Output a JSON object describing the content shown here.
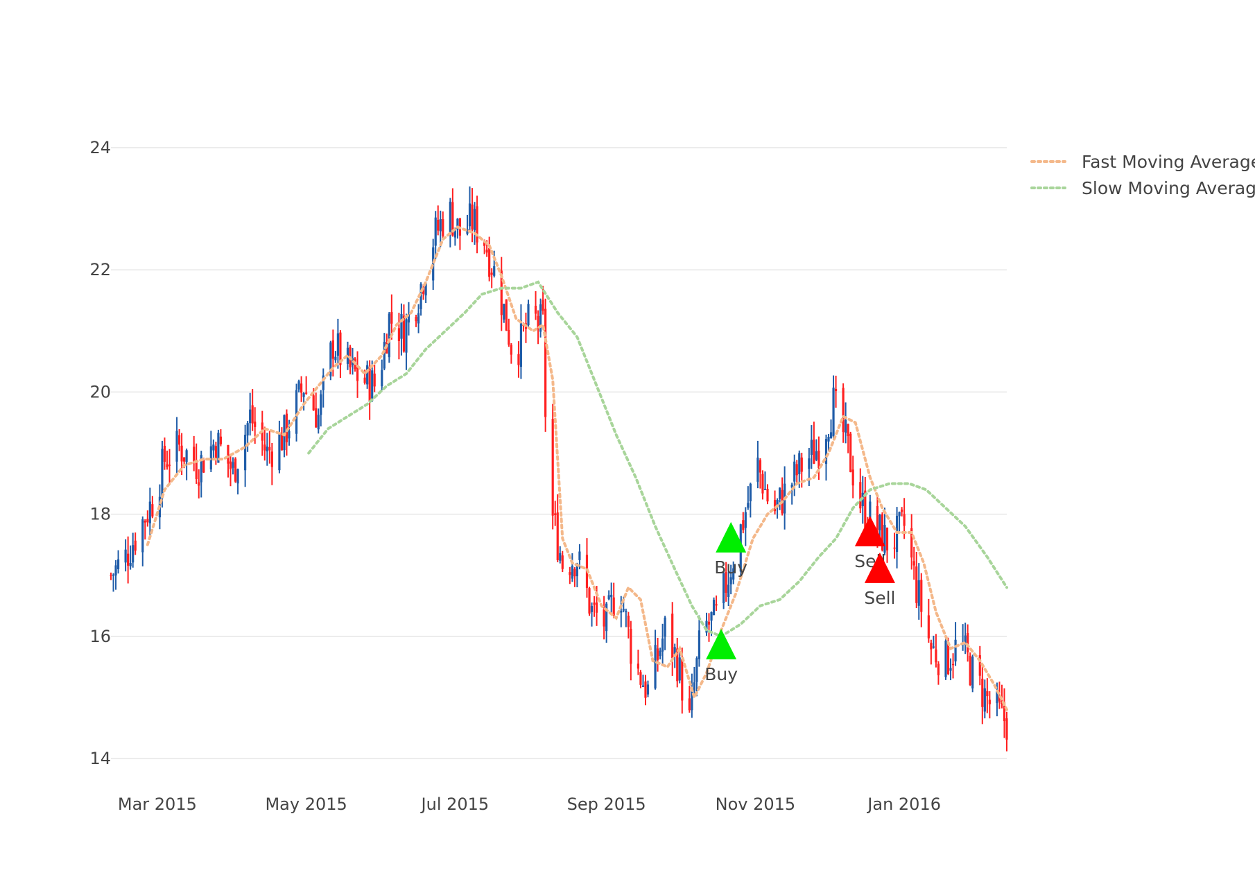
{
  "chart_data": {
    "type": "candlestick",
    "y_ticks": [
      14,
      16,
      18,
      20,
      22,
      24
    ],
    "ylim": [
      14,
      24
    ],
    "x_ticks": [
      {
        "date": "2015-03-01",
        "label": "Mar 2015"
      },
      {
        "date": "2015-05-01",
        "label": "May 2015"
      },
      {
        "date": "2015-07-01",
        "label": "Jul 2015"
      },
      {
        "date": "2015-09-01",
        "label": "Sep 2015"
      },
      {
        "date": "2015-11-01",
        "label": "Nov 2015"
      },
      {
        "date": "2016-01-01",
        "label": "Jan 2016"
      }
    ],
    "xlim": [
      "2015-02-10",
      "2016-02-12"
    ],
    "grid": true,
    "legend_position": "top-right",
    "colors": {
      "increasing": "#1f5ca8",
      "decreasing": "#ff2020",
      "fast_ma": "#f4b88a",
      "slow_ma": "#a8d59a",
      "buy": "#00ee00",
      "sell": "#ff0000"
    },
    "close_path": [
      [
        "2015-02-10",
        17.0
      ],
      [
        "2015-02-16",
        17.3
      ],
      [
        "2015-02-22",
        17.8
      ],
      [
        "2015-02-28",
        18.3
      ],
      [
        "2015-03-04",
        18.9
      ],
      [
        "2015-03-10",
        19.1
      ],
      [
        "2015-03-18",
        18.8
      ],
      [
        "2015-03-25",
        19.2
      ],
      [
        "2015-04-01",
        18.7
      ],
      [
        "2015-04-08",
        19.6
      ],
      [
        "2015-04-15",
        19.0
      ],
      [
        "2015-04-22",
        19.3
      ],
      [
        "2015-04-30",
        20.1
      ],
      [
        "2015-05-06",
        19.6
      ],
      [
        "2015-05-12",
        20.8
      ],
      [
        "2015-05-18",
        20.4
      ],
      [
        "2015-05-24",
        20.2
      ],
      [
        "2015-05-30",
        20.1
      ],
      [
        "2015-06-04",
        21.2
      ],
      [
        "2015-06-10",
        21.0
      ],
      [
        "2015-06-16",
        21.6
      ],
      [
        "2015-06-22",
        22.5
      ],
      [
        "2015-06-28",
        23.0
      ],
      [
        "2015-07-03",
        22.6
      ],
      [
        "2015-07-08",
        22.8
      ],
      [
        "2015-07-13",
        22.5
      ],
      [
        "2015-07-19",
        21.7
      ],
      [
        "2015-07-25",
        20.6
      ],
      [
        "2015-08-01",
        21.2
      ],
      [
        "2015-08-06",
        21.1
      ],
      [
        "2015-08-08",
        18.3
      ],
      [
        "2015-08-14",
        17.2
      ],
      [
        "2015-08-20",
        17.3
      ],
      [
        "2015-08-26",
        16.4
      ],
      [
        "2015-09-01",
        16.2
      ],
      [
        "2015-09-06",
        16.9
      ],
      [
        "2015-09-12",
        15.6
      ],
      [
        "2015-09-18",
        15.1
      ],
      [
        "2015-09-25",
        16.1
      ],
      [
        "2015-09-30",
        15.6
      ],
      [
        "2015-10-05",
        14.6
      ],
      [
        "2015-10-10",
        16.1
      ],
      [
        "2015-10-16",
        16.3
      ],
      [
        "2015-10-21",
        17.0
      ],
      [
        "2015-10-27",
        17.9
      ],
      [
        "2015-11-02",
        18.8
      ],
      [
        "2015-11-08",
        18.0
      ],
      [
        "2015-11-14",
        18.4
      ],
      [
        "2015-11-20",
        18.8
      ],
      [
        "2015-11-27",
        19.1
      ],
      [
        "2015-12-03",
        19.8
      ],
      [
        "2015-12-08",
        19.2
      ],
      [
        "2015-12-14",
        18.2
      ],
      [
        "2015-12-20",
        17.8
      ],
      [
        "2015-12-26",
        17.5
      ],
      [
        "2016-01-01",
        17.8
      ],
      [
        "2016-01-06",
        16.8
      ],
      [
        "2016-01-12",
        15.8
      ],
      [
        "2016-01-18",
        15.6
      ],
      [
        "2016-01-24",
        15.9
      ],
      [
        "2016-01-30",
        15.3
      ],
      [
        "2016-02-05",
        14.9
      ],
      [
        "2016-02-12",
        14.6
      ]
    ],
    "candle_seed": 7,
    "series": [
      {
        "name": "Fast Moving Average",
        "style": "dotted",
        "color": "#f4b88a",
        "points": [
          [
            "2015-02-25",
            17.5
          ],
          [
            "2015-03-04",
            18.4
          ],
          [
            "2015-03-12",
            18.8
          ],
          [
            "2015-03-20",
            18.9
          ],
          [
            "2015-03-28",
            18.9
          ],
          [
            "2015-04-06",
            19.1
          ],
          [
            "2015-04-14",
            19.4
          ],
          [
            "2015-04-22",
            19.3
          ],
          [
            "2015-04-30",
            19.8
          ],
          [
            "2015-05-06",
            20.1
          ],
          [
            "2015-05-12",
            20.4
          ],
          [
            "2015-05-18",
            20.6
          ],
          [
            "2015-05-25",
            20.3
          ],
          [
            "2015-06-01",
            20.6
          ],
          [
            "2015-06-07",
            21.1
          ],
          [
            "2015-06-13",
            21.3
          ],
          [
            "2015-06-19",
            21.8
          ],
          [
            "2015-06-26",
            22.5
          ],
          [
            "2015-07-02",
            22.7
          ],
          [
            "2015-07-09",
            22.6
          ],
          [
            "2015-07-15",
            22.4
          ],
          [
            "2015-07-20",
            21.9
          ],
          [
            "2015-07-26",
            21.2
          ],
          [
            "2015-08-02",
            21.0
          ],
          [
            "2015-08-06",
            21.1
          ],
          [
            "2015-08-10",
            20.2
          ],
          [
            "2015-08-14",
            17.6
          ],
          [
            "2015-08-18",
            17.2
          ],
          [
            "2015-08-24",
            17.1
          ],
          [
            "2015-08-30",
            16.5
          ],
          [
            "2015-09-05",
            16.3
          ],
          [
            "2015-09-10",
            16.8
          ],
          [
            "2015-09-15",
            16.6
          ],
          [
            "2015-09-20",
            15.6
          ],
          [
            "2015-09-26",
            15.5
          ],
          [
            "2015-10-01",
            15.8
          ],
          [
            "2015-10-07",
            15.0
          ],
          [
            "2015-10-12",
            15.4
          ],
          [
            "2015-10-18",
            16.1
          ],
          [
            "2015-10-24",
            16.7
          ],
          [
            "2015-10-31",
            17.6
          ],
          [
            "2015-11-06",
            18.0
          ],
          [
            "2015-11-12",
            18.2
          ],
          [
            "2015-11-18",
            18.5
          ],
          [
            "2015-11-25",
            18.6
          ],
          [
            "2015-12-01",
            19.0
          ],
          [
            "2015-12-07",
            19.6
          ],
          [
            "2015-12-12",
            19.5
          ],
          [
            "2015-12-18",
            18.6
          ],
          [
            "2015-12-23",
            18.1
          ],
          [
            "2015-12-29",
            17.7
          ],
          [
            "2016-01-04",
            17.7
          ],
          [
            "2016-01-09",
            17.2
          ],
          [
            "2016-01-14",
            16.4
          ],
          [
            "2016-01-20",
            15.8
          ],
          [
            "2016-01-26",
            15.9
          ],
          [
            "2016-02-01",
            15.6
          ],
          [
            "2016-02-07",
            15.2
          ],
          [
            "2016-02-12",
            14.8
          ]
        ]
      },
      {
        "name": "Slow Moving Average",
        "style": "dotted",
        "color": "#a8d59a",
        "points": [
          [
            "2015-05-02",
            19.0
          ],
          [
            "2015-05-10",
            19.4
          ],
          [
            "2015-05-18",
            19.6
          ],
          [
            "2015-05-26",
            19.8
          ],
          [
            "2015-06-03",
            20.1
          ],
          [
            "2015-06-11",
            20.3
          ],
          [
            "2015-06-19",
            20.7
          ],
          [
            "2015-06-27",
            21.0
          ],
          [
            "2015-07-05",
            21.3
          ],
          [
            "2015-07-12",
            21.6
          ],
          [
            "2015-07-20",
            21.7
          ],
          [
            "2015-07-28",
            21.7
          ],
          [
            "2015-08-04",
            21.8
          ],
          [
            "2015-08-12",
            21.3
          ],
          [
            "2015-08-20",
            20.9
          ],
          [
            "2015-08-28",
            20.1
          ],
          [
            "2015-09-05",
            19.3
          ],
          [
            "2015-09-13",
            18.6
          ],
          [
            "2015-09-21",
            17.8
          ],
          [
            "2015-09-29",
            17.1
          ],
          [
            "2015-10-06",
            16.5
          ],
          [
            "2015-10-12",
            16.1
          ],
          [
            "2015-10-18",
            16.0
          ],
          [
            "2015-10-26",
            16.2
          ],
          [
            "2015-11-03",
            16.5
          ],
          [
            "2015-11-11",
            16.6
          ],
          [
            "2015-11-19",
            16.9
          ],
          [
            "2015-11-27",
            17.3
          ],
          [
            "2015-12-04",
            17.6
          ],
          [
            "2015-12-11",
            18.1
          ],
          [
            "2015-12-18",
            18.4
          ],
          [
            "2015-12-26",
            18.5
          ],
          [
            "2016-01-03",
            18.5
          ],
          [
            "2016-01-10",
            18.4
          ],
          [
            "2016-01-18",
            18.1
          ],
          [
            "2016-01-26",
            17.8
          ],
          [
            "2016-02-04",
            17.3
          ],
          [
            "2016-02-12",
            16.8
          ]
        ]
      }
    ],
    "markers": [
      {
        "type": "buy",
        "label": "Buy",
        "date": "2015-10-22",
        "value": 17.6
      },
      {
        "type": "buy",
        "label": "Buy",
        "date": "2015-10-18",
        "value": 15.85
      },
      {
        "type": "sell",
        "label": "Sell",
        "date": "2015-12-18",
        "value": 17.7
      },
      {
        "type": "sell",
        "label": "Sell",
        "date": "2015-12-22",
        "value": 17.1
      }
    ]
  }
}
